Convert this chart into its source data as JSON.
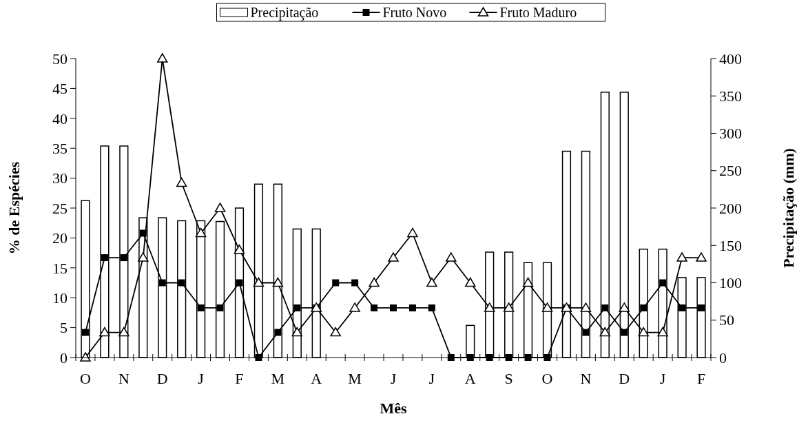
{
  "chart_data": {
    "type": "bar",
    "xlabel": "Mês",
    "ylabel": "% de Espécies",
    "y2label": "Precipitação (mm)",
    "categories": [
      "O",
      null,
      "N",
      null,
      "D",
      null,
      "J",
      null,
      "F",
      null,
      "M",
      null,
      "A",
      null,
      "M",
      null,
      "J",
      null,
      "J",
      null,
      "A",
      null,
      "S",
      null,
      "O",
      null,
      "N",
      null,
      "D",
      null,
      "J",
      null,
      "F"
    ],
    "series": [
      {
        "name": "Precipitação",
        "axis": "y2",
        "color": "#ffffff",
        "values": [
          210,
          283,
          283,
          187,
          187,
          183,
          183,
          182,
          200,
          232,
          232,
          172,
          172,
          0,
          0,
          0,
          0,
          0,
          0,
          0,
          43,
          141,
          141,
          127,
          127,
          276,
          276,
          355,
          355,
          145,
          145,
          107,
          107
        ]
      },
      {
        "name": "Fruto Novo",
        "type": "line",
        "axis": "y",
        "color": "#000000",
        "marker": "square",
        "values": [
          4.2,
          16.7,
          16.7,
          20.8,
          12.5,
          12.5,
          8.3,
          8.3,
          12.5,
          0,
          4.2,
          8.3,
          8.3,
          12.5,
          12.5,
          8.3,
          8.3,
          8.3,
          8.3,
          0,
          0,
          0,
          0,
          0,
          0,
          8.3,
          4.2,
          8.3,
          4.2,
          8.3,
          12.5,
          8.3,
          8.3
        ]
      },
      {
        "name": "Fruto Maduro",
        "type": "line",
        "axis": "y",
        "color": "#000000",
        "marker": "triangle",
        "values": [
          0,
          4.2,
          4.2,
          16.7,
          50,
          29.2,
          20.8,
          25,
          18,
          12.5,
          12.5,
          4.2,
          8.3,
          4.2,
          8.3,
          12.5,
          16.7,
          20.8,
          12.5,
          16.7,
          12.5,
          8.3,
          8.3,
          12.5,
          8.3,
          8.3,
          8.3,
          4.2,
          8.3,
          4.2,
          4.2,
          16.7,
          16.7
        ]
      }
    ],
    "ylim": [
      0,
      50
    ],
    "yticks": [
      0,
      5,
      10,
      15,
      20,
      25,
      30,
      35,
      40,
      45,
      50
    ],
    "y2lim": [
      0,
      400
    ],
    "y2ticks": [
      0,
      50,
      100,
      150,
      200,
      250,
      300,
      350,
      400
    ],
    "grid": false,
    "legend": "top"
  }
}
